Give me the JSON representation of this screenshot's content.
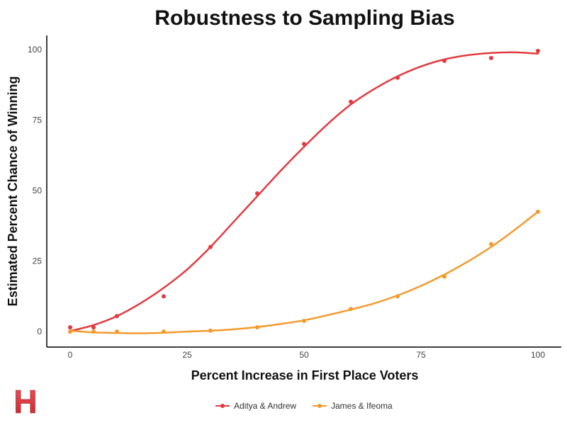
{
  "chart_data": {
    "type": "scatter",
    "title": "Robustness to Sampling Bias",
    "xlabel": "Percent Increase in First Place Voters",
    "ylabel": "Estimated Percent Chance of Winning",
    "xlim": [
      -5,
      105
    ],
    "ylim": [
      -5.5,
      105
    ],
    "xticks": [
      0,
      25,
      50,
      75,
      100
    ],
    "yticks": [
      0,
      25,
      50,
      75,
      100
    ],
    "grid": false,
    "legend_position": "bottom",
    "series": [
      {
        "name": "Aditya & Andrew",
        "color": "#e23a3f",
        "points": [
          [
            0,
            1.5
          ],
          [
            5,
            1.5
          ],
          [
            10,
            5.5
          ],
          [
            20,
            12.5
          ],
          [
            30,
            30
          ],
          [
            40,
            49
          ],
          [
            50,
            66.5
          ],
          [
            60,
            81.5
          ],
          [
            70,
            90
          ],
          [
            80,
            96
          ],
          [
            90,
            97
          ],
          [
            100,
            99.5
          ]
        ],
        "smooth": [
          [
            0,
            0.2
          ],
          [
            5,
            2.3
          ],
          [
            10,
            5.5
          ],
          [
            15,
            10
          ],
          [
            20,
            15.5
          ],
          [
            25,
            22
          ],
          [
            30,
            30
          ],
          [
            35,
            39
          ],
          [
            40,
            48
          ],
          [
            45,
            57
          ],
          [
            50,
            65.5
          ],
          [
            55,
            73.5
          ],
          [
            60,
            80.5
          ],
          [
            65,
            86
          ],
          [
            70,
            90.5
          ],
          [
            75,
            94
          ],
          [
            80,
            96.5
          ],
          [
            85,
            98
          ],
          [
            90,
            98.8
          ],
          [
            95,
            99
          ],
          [
            100,
            98.5
          ]
        ]
      },
      {
        "name": "James & Ifeoma",
        "color": "#f39a2d",
        "points": [
          [
            0,
            0
          ],
          [
            5,
            0
          ],
          [
            10,
            0
          ],
          [
            20,
            0
          ],
          [
            30,
            0.3
          ],
          [
            40,
            1.5
          ],
          [
            50,
            3.8
          ],
          [
            60,
            8
          ],
          [
            70,
            12.5
          ],
          [
            80,
            19.5
          ],
          [
            90,
            31
          ],
          [
            100,
            42.5
          ]
        ],
        "smooth": [
          [
            0,
            0.3
          ],
          [
            5,
            -0.3
          ],
          [
            10,
            -0.5
          ],
          [
            15,
            -0.6
          ],
          [
            20,
            -0.4
          ],
          [
            25,
            0
          ],
          [
            30,
            0.3
          ],
          [
            35,
            0.8
          ],
          [
            40,
            1.6
          ],
          [
            45,
            2.7
          ],
          [
            50,
            4
          ],
          [
            55,
            5.8
          ],
          [
            60,
            7.8
          ],
          [
            65,
            10
          ],
          [
            70,
            12.8
          ],
          [
            75,
            16.2
          ],
          [
            80,
            20.2
          ],
          [
            85,
            24.8
          ],
          [
            90,
            30
          ],
          [
            95,
            36
          ],
          [
            100,
            42.5
          ]
        ]
      }
    ]
  },
  "brand": {
    "logo_letter": "H",
    "logo_color": "#e23a3f"
  }
}
